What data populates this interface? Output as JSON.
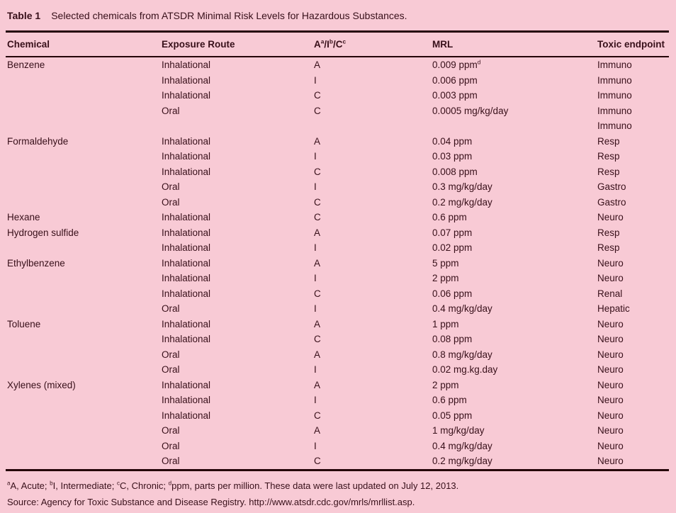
{
  "colors": {
    "background": "#f8cad5",
    "text": "#38101a",
    "rule": "#250409"
  },
  "caption": {
    "label": "Table 1",
    "text": "Selected chemicals from ATSDR Minimal Risk Levels for Hazardous Substances."
  },
  "table": {
    "columns": [
      {
        "key": "chemical",
        "label": "Chemical"
      },
      {
        "key": "route",
        "label": "Exposure Route"
      },
      {
        "key": "class",
        "label": "A^a/I^b/C^c"
      },
      {
        "key": "mrl",
        "label": "MRL"
      },
      {
        "key": "endpoint",
        "label": "Toxic endpoint"
      }
    ],
    "rows": [
      [
        "Benzene",
        "Inhalational",
        "A",
        "0.009 ppm^d",
        "Immuno"
      ],
      [
        "",
        "Inhalational",
        "I",
        "0.006 ppm",
        "Immuno"
      ],
      [
        "",
        "Inhalational",
        "C",
        "0.003 ppm",
        "Immuno"
      ],
      [
        "",
        "Oral",
        "C",
        "0.0005 mg/kg/day",
        "Immuno"
      ],
      [
        "",
        "",
        "",
        "",
        "Immuno"
      ],
      [
        "Formaldehyde",
        "Inhalational",
        "A",
        "0.04 ppm",
        "Resp"
      ],
      [
        "",
        "Inhalational",
        "I",
        "0.03 ppm",
        "Resp"
      ],
      [
        "",
        "Inhalational",
        "C",
        "0.008 ppm",
        "Resp"
      ],
      [
        "",
        "Oral",
        "I",
        "0.3 mg/kg/day",
        "Gastro"
      ],
      [
        "",
        "Oral",
        "C",
        "0.2 mg/kg/day",
        "Gastro"
      ],
      [
        "Hexane",
        "Inhalational",
        "C",
        "0.6 ppm",
        "Neuro"
      ],
      [
        "Hydrogen sulfide",
        "Inhalational",
        "A",
        "0.07 ppm",
        "Resp"
      ],
      [
        "",
        "Inhalational",
        "I",
        "0.02 ppm",
        "Resp"
      ],
      [
        "Ethylbenzene",
        "Inhalational",
        "A",
        "5 ppm",
        "Neuro"
      ],
      [
        "",
        "Inhalational",
        "I",
        "2 ppm",
        "Neuro"
      ],
      [
        "",
        "Inhalational",
        "C",
        "0.06 ppm",
        "Renal"
      ],
      [
        "",
        "Oral",
        "I",
        "0.4 mg/kg/day",
        "Hepatic"
      ],
      [
        "Toluene",
        "Inhalational",
        "A",
        "1 ppm",
        "Neuro"
      ],
      [
        "",
        "Inhalational",
        "C",
        "0.08 ppm",
        "Neuro"
      ],
      [
        "",
        "Oral",
        "A",
        "0.8 mg/kg/day",
        "Neuro"
      ],
      [
        "",
        "Oral",
        "I",
        "0.02 mg.kg.day",
        "Neuro"
      ],
      [
        "Xylenes (mixed)",
        "Inhalational",
        "A",
        "2 ppm",
        "Neuro"
      ],
      [
        "",
        "Inhalational",
        "I",
        "0.6 ppm",
        "Neuro"
      ],
      [
        "",
        "Inhalational",
        "C",
        "0.05 ppm",
        "Neuro"
      ],
      [
        "",
        "Oral",
        "A",
        "1 mg/kg/day",
        "Neuro"
      ],
      [
        "",
        "Oral",
        "I",
        "0.4 mg/kg/day",
        "Neuro"
      ],
      [
        "",
        "Oral",
        "C",
        "0.2 mg/kg/day",
        "Neuro"
      ]
    ]
  },
  "footnotes": [
    "^aA, Acute; ^bI, Intermediate; ^cC, Chronic; ^dppm, parts per million. These data were last updated on July 12, 2013.",
    "Source: Agency for Toxic Substance and Disease Registry. http://www.atsdr.cdc.gov/mrls/mrllist.asp."
  ]
}
